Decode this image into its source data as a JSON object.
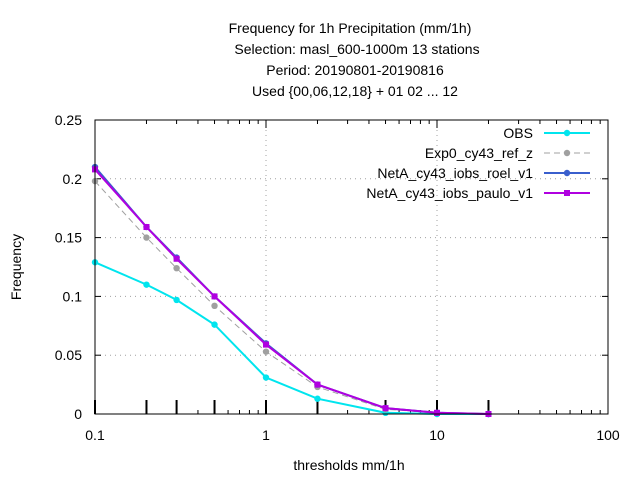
{
  "chart_data": {
    "type": "line",
    "title_lines": [
      "Frequency  for 1h Precipitation (mm/1h)",
      "Selection: masl_600-1000m     13 stations",
      "Period: 20190801-20190816",
      "Used {00,06,12,18} + 01 02 ... 12"
    ],
    "xlabel": "thresholds mm/1h",
    "ylabel": "Frequency",
    "xscale": "log",
    "xlim": [
      0.1,
      100
    ],
    "ylim": [
      0,
      0.25
    ],
    "x_ticks": [
      0.1,
      1,
      10,
      100
    ],
    "x_tick_labels": [
      "0.1",
      "1",
      "10",
      "100"
    ],
    "y_ticks": [
      0,
      0.05,
      0.1,
      0.15,
      0.2,
      0.25
    ],
    "y_tick_labels": [
      "0",
      "0.05",
      "0.1",
      "0.15",
      "0.2",
      "0.25"
    ],
    "legend_position": "top-right",
    "x": [
      0.1,
      0.2,
      0.3,
      0.5,
      1,
      2,
      5,
      10,
      20
    ],
    "series": [
      {
        "name": "OBS",
        "color": "#00e5ee",
        "style": "solid",
        "marker": "circle",
        "values": [
          0.129,
          0.11,
          0.097,
          0.076,
          0.031,
          0.013,
          0.001,
          0.0,
          0.0
        ]
      },
      {
        "name": "Exp0_cy43_ref_z",
        "color": "#a0a0a0",
        "style": "dashed",
        "marker": "circle",
        "values": [
          0.198,
          0.15,
          0.124,
          0.092,
          0.053,
          0.023,
          0.004,
          0.001,
          0.0
        ]
      },
      {
        "name": "NetA_cy43_iobs_roel_v1",
        "color": "#3a5fcd",
        "style": "solid",
        "marker": "circle",
        "values": [
          0.21,
          0.159,
          0.133,
          0.1,
          0.06,
          0.025,
          0.005,
          0.001,
          0.0
        ]
      },
      {
        "name": "NetA_cy43_iobs_paulo_v1",
        "color": "#b000e0",
        "style": "solid",
        "marker": "square",
        "values": [
          0.208,
          0.159,
          0.132,
          0.1,
          0.059,
          0.025,
          0.005,
          0.001,
          0.0
        ]
      }
    ],
    "rug_x": [
      0.1,
      0.2,
      0.3,
      0.5,
      1,
      2,
      5,
      10,
      20
    ]
  }
}
